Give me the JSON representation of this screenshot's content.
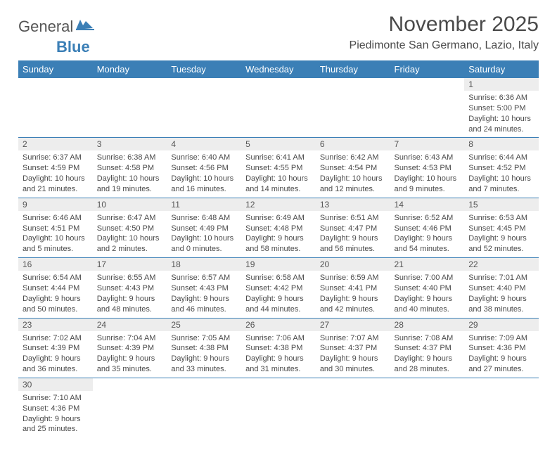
{
  "logo": {
    "text1": "General",
    "text2": "Blue"
  },
  "title": "November 2025",
  "location": "Piedimonte San Germano, Lazio, Italy",
  "colors": {
    "header_bg": "#3b7fb6",
    "header_text": "#ffffff",
    "daynum_bg": "#ededed",
    "text": "#4a4a4a",
    "rule": "#3b7fb6",
    "background": "#ffffff"
  },
  "typography": {
    "title_fontsize": 30,
    "location_fontsize": 16,
    "header_fontsize": 13,
    "daynum_fontsize": 12,
    "body_fontsize": 11
  },
  "day_headers": [
    "Sunday",
    "Monday",
    "Tuesday",
    "Wednesday",
    "Thursday",
    "Friday",
    "Saturday"
  ],
  "weeks": [
    [
      {
        "n": "",
        "sr": "",
        "ss": "",
        "d1": "",
        "d2": ""
      },
      {
        "n": "",
        "sr": "",
        "ss": "",
        "d1": "",
        "d2": ""
      },
      {
        "n": "",
        "sr": "",
        "ss": "",
        "d1": "",
        "d2": ""
      },
      {
        "n": "",
        "sr": "",
        "ss": "",
        "d1": "",
        "d2": ""
      },
      {
        "n": "",
        "sr": "",
        "ss": "",
        "d1": "",
        "d2": ""
      },
      {
        "n": "",
        "sr": "",
        "ss": "",
        "d1": "",
        "d2": ""
      },
      {
        "n": "1",
        "sr": "Sunrise: 6:36 AM",
        "ss": "Sunset: 5:00 PM",
        "d1": "Daylight: 10 hours",
        "d2": "and 24 minutes."
      }
    ],
    [
      {
        "n": "2",
        "sr": "Sunrise: 6:37 AM",
        "ss": "Sunset: 4:59 PM",
        "d1": "Daylight: 10 hours",
        "d2": "and 21 minutes."
      },
      {
        "n": "3",
        "sr": "Sunrise: 6:38 AM",
        "ss": "Sunset: 4:58 PM",
        "d1": "Daylight: 10 hours",
        "d2": "and 19 minutes."
      },
      {
        "n": "4",
        "sr": "Sunrise: 6:40 AM",
        "ss": "Sunset: 4:56 PM",
        "d1": "Daylight: 10 hours",
        "d2": "and 16 minutes."
      },
      {
        "n": "5",
        "sr": "Sunrise: 6:41 AM",
        "ss": "Sunset: 4:55 PM",
        "d1": "Daylight: 10 hours",
        "d2": "and 14 minutes."
      },
      {
        "n": "6",
        "sr": "Sunrise: 6:42 AM",
        "ss": "Sunset: 4:54 PM",
        "d1": "Daylight: 10 hours",
        "d2": "and 12 minutes."
      },
      {
        "n": "7",
        "sr": "Sunrise: 6:43 AM",
        "ss": "Sunset: 4:53 PM",
        "d1": "Daylight: 10 hours",
        "d2": "and 9 minutes."
      },
      {
        "n": "8",
        "sr": "Sunrise: 6:44 AM",
        "ss": "Sunset: 4:52 PM",
        "d1": "Daylight: 10 hours",
        "d2": "and 7 minutes."
      }
    ],
    [
      {
        "n": "9",
        "sr": "Sunrise: 6:46 AM",
        "ss": "Sunset: 4:51 PM",
        "d1": "Daylight: 10 hours",
        "d2": "and 5 minutes."
      },
      {
        "n": "10",
        "sr": "Sunrise: 6:47 AM",
        "ss": "Sunset: 4:50 PM",
        "d1": "Daylight: 10 hours",
        "d2": "and 2 minutes."
      },
      {
        "n": "11",
        "sr": "Sunrise: 6:48 AM",
        "ss": "Sunset: 4:49 PM",
        "d1": "Daylight: 10 hours",
        "d2": "and 0 minutes."
      },
      {
        "n": "12",
        "sr": "Sunrise: 6:49 AM",
        "ss": "Sunset: 4:48 PM",
        "d1": "Daylight: 9 hours",
        "d2": "and 58 minutes."
      },
      {
        "n": "13",
        "sr": "Sunrise: 6:51 AM",
        "ss": "Sunset: 4:47 PM",
        "d1": "Daylight: 9 hours",
        "d2": "and 56 minutes."
      },
      {
        "n": "14",
        "sr": "Sunrise: 6:52 AM",
        "ss": "Sunset: 4:46 PM",
        "d1": "Daylight: 9 hours",
        "d2": "and 54 minutes."
      },
      {
        "n": "15",
        "sr": "Sunrise: 6:53 AM",
        "ss": "Sunset: 4:45 PM",
        "d1": "Daylight: 9 hours",
        "d2": "and 52 minutes."
      }
    ],
    [
      {
        "n": "16",
        "sr": "Sunrise: 6:54 AM",
        "ss": "Sunset: 4:44 PM",
        "d1": "Daylight: 9 hours",
        "d2": "and 50 minutes."
      },
      {
        "n": "17",
        "sr": "Sunrise: 6:55 AM",
        "ss": "Sunset: 4:43 PM",
        "d1": "Daylight: 9 hours",
        "d2": "and 48 minutes."
      },
      {
        "n": "18",
        "sr": "Sunrise: 6:57 AM",
        "ss": "Sunset: 4:43 PM",
        "d1": "Daylight: 9 hours",
        "d2": "and 46 minutes."
      },
      {
        "n": "19",
        "sr": "Sunrise: 6:58 AM",
        "ss": "Sunset: 4:42 PM",
        "d1": "Daylight: 9 hours",
        "d2": "and 44 minutes."
      },
      {
        "n": "20",
        "sr": "Sunrise: 6:59 AM",
        "ss": "Sunset: 4:41 PM",
        "d1": "Daylight: 9 hours",
        "d2": "and 42 minutes."
      },
      {
        "n": "21",
        "sr": "Sunrise: 7:00 AM",
        "ss": "Sunset: 4:40 PM",
        "d1": "Daylight: 9 hours",
        "d2": "and 40 minutes."
      },
      {
        "n": "22",
        "sr": "Sunrise: 7:01 AM",
        "ss": "Sunset: 4:40 PM",
        "d1": "Daylight: 9 hours",
        "d2": "and 38 minutes."
      }
    ],
    [
      {
        "n": "23",
        "sr": "Sunrise: 7:02 AM",
        "ss": "Sunset: 4:39 PM",
        "d1": "Daylight: 9 hours",
        "d2": "and 36 minutes."
      },
      {
        "n": "24",
        "sr": "Sunrise: 7:04 AM",
        "ss": "Sunset: 4:39 PM",
        "d1": "Daylight: 9 hours",
        "d2": "and 35 minutes."
      },
      {
        "n": "25",
        "sr": "Sunrise: 7:05 AM",
        "ss": "Sunset: 4:38 PM",
        "d1": "Daylight: 9 hours",
        "d2": "and 33 minutes."
      },
      {
        "n": "26",
        "sr": "Sunrise: 7:06 AM",
        "ss": "Sunset: 4:38 PM",
        "d1": "Daylight: 9 hours",
        "d2": "and 31 minutes."
      },
      {
        "n": "27",
        "sr": "Sunrise: 7:07 AM",
        "ss": "Sunset: 4:37 PM",
        "d1": "Daylight: 9 hours",
        "d2": "and 30 minutes."
      },
      {
        "n": "28",
        "sr": "Sunrise: 7:08 AM",
        "ss": "Sunset: 4:37 PM",
        "d1": "Daylight: 9 hours",
        "d2": "and 28 minutes."
      },
      {
        "n": "29",
        "sr": "Sunrise: 7:09 AM",
        "ss": "Sunset: 4:36 PM",
        "d1": "Daylight: 9 hours",
        "d2": "and 27 minutes."
      }
    ],
    [
      {
        "n": "30",
        "sr": "Sunrise: 7:10 AM",
        "ss": "Sunset: 4:36 PM",
        "d1": "Daylight: 9 hours",
        "d2": "and 25 minutes."
      },
      {
        "n": "",
        "sr": "",
        "ss": "",
        "d1": "",
        "d2": ""
      },
      {
        "n": "",
        "sr": "",
        "ss": "",
        "d1": "",
        "d2": ""
      },
      {
        "n": "",
        "sr": "",
        "ss": "",
        "d1": "",
        "d2": ""
      },
      {
        "n": "",
        "sr": "",
        "ss": "",
        "d1": "",
        "d2": ""
      },
      {
        "n": "",
        "sr": "",
        "ss": "",
        "d1": "",
        "d2": ""
      },
      {
        "n": "",
        "sr": "",
        "ss": "",
        "d1": "",
        "d2": ""
      }
    ]
  ]
}
